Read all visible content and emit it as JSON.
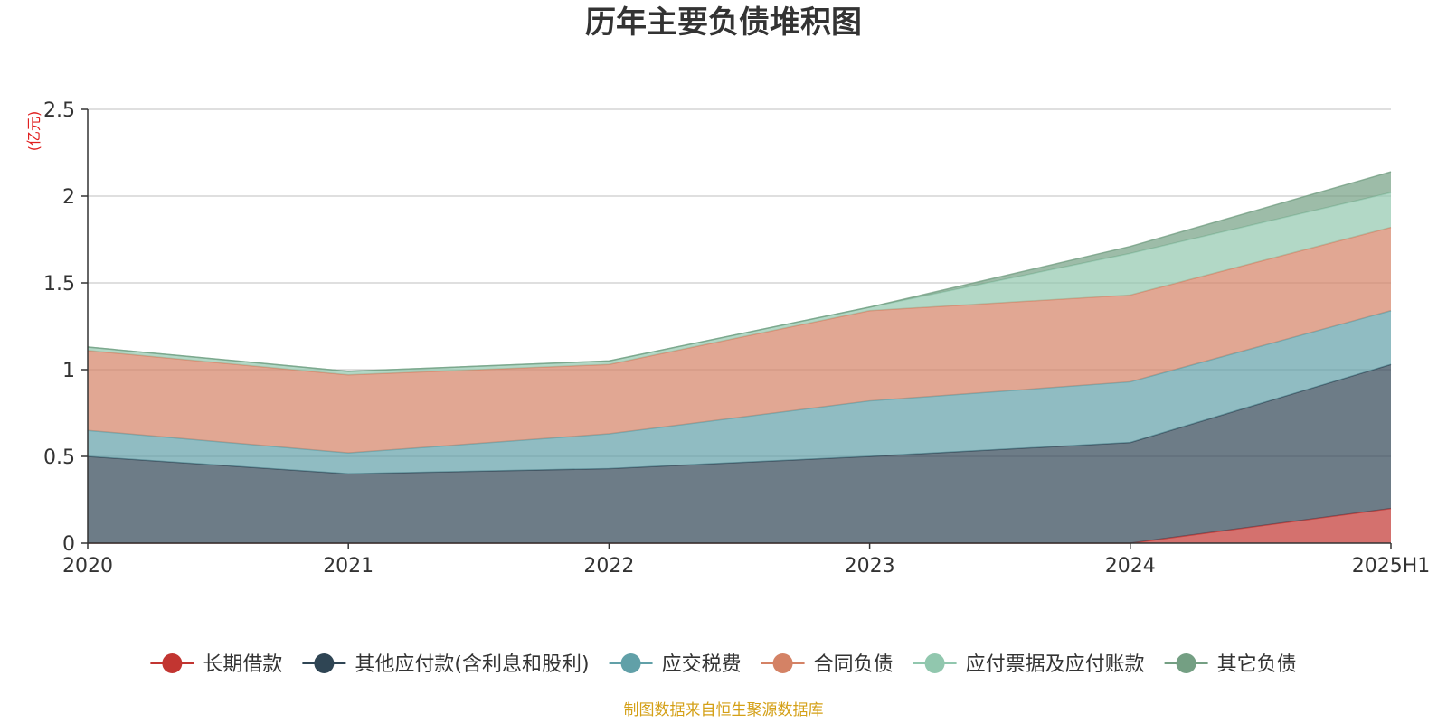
{
  "chart_data": {
    "type": "area",
    "stacked": true,
    "title": "历年主要负债堆积图",
    "unit_label": "(亿元)",
    "source_note": "制图数据来自恒生聚源数据库",
    "x": [
      "2020",
      "2021",
      "2022",
      "2023",
      "2024",
      "2025H1"
    ],
    "y_ticks": [
      "0",
      "0.5",
      "1",
      "1.5",
      "2",
      "2.5"
    ],
    "ylim": [
      0,
      2.5
    ],
    "grid": true,
    "legend_position": "bottom",
    "series": [
      {
        "name": "长期借款",
        "color": "#c23531",
        "values": [
          0,
          0,
          0,
          0,
          0,
          0.2
        ]
      },
      {
        "name": "其他应付款(含利息和股利)",
        "color": "#2f4554",
        "values": [
          0.5,
          0.4,
          0.43,
          0.5,
          0.58,
          0.83
        ]
      },
      {
        "name": "应交税费",
        "color": "#61a0a8",
        "values": [
          0.15,
          0.12,
          0.2,
          0.32,
          0.35,
          0.31
        ]
      },
      {
        "name": "合同负债",
        "color": "#d48265",
        "values": [
          0.46,
          0.45,
          0.4,
          0.52,
          0.5,
          0.48
        ]
      },
      {
        "name": "应付票据及应付账款",
        "color": "#91c7ae",
        "values": [
          0.02,
          0.02,
          0.02,
          0.02,
          0.24,
          0.2
        ]
      },
      {
        "name": "其它负债",
        "color": "#749f83",
        "values": [
          0.0,
          0.0,
          0.0,
          0.0,
          0.04,
          0.12
        ]
      }
    ]
  }
}
